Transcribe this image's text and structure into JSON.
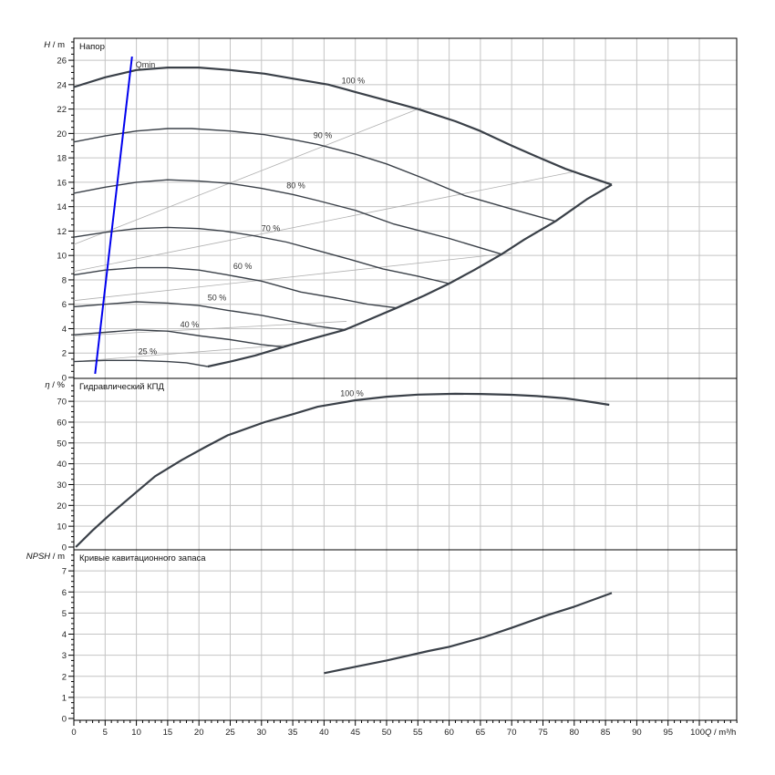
{
  "chart_data": [
    {
      "type": "line",
      "title": "Напор",
      "ylabel_italic": "H",
      "ylabel_unit": " / m",
      "xlim": [
        0,
        106
      ],
      "ylim": [
        0,
        27.8
      ],
      "yticks": [
        0,
        2,
        4,
        6,
        8,
        10,
        12,
        14,
        16,
        18,
        20,
        22,
        24,
        26
      ],
      "grid": true,
      "series": [
        {
          "name": "100 %",
          "label_at": [
            42.8,
            24.1
          ],
          "points": [
            [
              0,
              23.8
            ],
            [
              5,
              24.6
            ],
            [
              10,
              25.2
            ],
            [
              15,
              25.4
            ],
            [
              20,
              25.4
            ],
            [
              25,
              25.2
            ],
            [
              30.5,
              24.9
            ],
            [
              35,
              24.5
            ],
            [
              40.7,
              24.0
            ],
            [
              45,
              23.4
            ],
            [
              50,
              22.7
            ],
            [
              55,
              22.0
            ],
            [
              61,
              21.0
            ],
            [
              65,
              20.2
            ],
            [
              70,
              19.0
            ],
            [
              74,
              18.1
            ],
            [
              78.6,
              17.1
            ],
            [
              82,
              16.5
            ],
            [
              86,
              15.8
            ]
          ]
        },
        {
          "name": "90 %",
          "label_at": [
            38.3,
            19.6
          ],
          "points": [
            [
              0,
              19.3
            ],
            [
              5,
              19.8
            ],
            [
              10,
              20.2
            ],
            [
              15,
              20.4
            ],
            [
              18.8,
              20.4
            ],
            [
              25,
              20.2
            ],
            [
              30.5,
              19.9
            ],
            [
              35,
              19.5
            ],
            [
              39,
              19.1
            ],
            [
              45,
              18.3
            ],
            [
              50,
              17.5
            ],
            [
              56,
              16.3
            ],
            [
              62.5,
              14.9
            ],
            [
              70,
              13.8
            ],
            [
              77,
              12.8
            ]
          ]
        },
        {
          "name": "80 %",
          "label_at": [
            34,
            15.5
          ],
          "points": [
            [
              0,
              15.1
            ],
            [
              5,
              15.6
            ],
            [
              10,
              16.0
            ],
            [
              15,
              16.2
            ],
            [
              20,
              16.1
            ],
            [
              25,
              15.9
            ],
            [
              30,
              15.5
            ],
            [
              35,
              15.0
            ],
            [
              39,
              14.5
            ],
            [
              45,
              13.7
            ],
            [
              51,
              12.6
            ],
            [
              60,
              11.4
            ],
            [
              68.4,
              10.1
            ]
          ]
        },
        {
          "name": "70 %",
          "label_at": [
            30,
            12.0
          ],
          "points": [
            [
              0,
              11.5
            ],
            [
              5,
              11.9
            ],
            [
              10,
              12.2
            ],
            [
              15,
              12.3
            ],
            [
              20,
              12.2
            ],
            [
              24,
              12.0
            ],
            [
              29,
              11.6
            ],
            [
              34,
              11.1
            ],
            [
              39,
              10.4
            ],
            [
              44,
              9.7
            ],
            [
              49.4,
              8.9
            ],
            [
              55,
              8.3
            ],
            [
              60,
              7.7
            ]
          ]
        },
        {
          "name": "60 %",
          "label_at": [
            25.5,
            8.9
          ],
          "points": [
            [
              0,
              8.4
            ],
            [
              5,
              8.8
            ],
            [
              10,
              9.0
            ],
            [
              15,
              9.0
            ],
            [
              20,
              8.8
            ],
            [
              24.6,
              8.4
            ],
            [
              30,
              7.9
            ],
            [
              36.3,
              7.0
            ],
            [
              42,
              6.5
            ],
            [
              47,
              6.0
            ],
            [
              51.6,
              5.7
            ]
          ]
        },
        {
          "name": "50 %",
          "label_at": [
            21.4,
            6.3
          ],
          "points": [
            [
              0,
              5.8
            ],
            [
              5,
              6.0
            ],
            [
              10,
              6.2
            ],
            [
              15,
              6.1
            ],
            [
              20,
              5.9
            ],
            [
              24.6,
              5.5
            ],
            [
              30,
              5.1
            ],
            [
              34.8,
              4.6
            ],
            [
              39,
              4.2
            ],
            [
              43.3,
              3.9
            ]
          ]
        },
        {
          "name": "40 %",
          "label_at": [
            17,
            4.1
          ],
          "points": [
            [
              0,
              3.5
            ],
            [
              5,
              3.7
            ],
            [
              10,
              3.9
            ],
            [
              15,
              3.8
            ],
            [
              20.3,
              3.4
            ],
            [
              25,
              3.1
            ],
            [
              30,
              2.7
            ],
            [
              33.4,
              2.5
            ]
          ]
        },
        {
          "name": "25 %",
          "label_at": [
            10.3,
            1.9
          ],
          "points": [
            [
              0,
              1.3
            ],
            [
              5,
              1.4
            ],
            [
              10,
              1.4
            ],
            [
              15,
              1.3
            ],
            [
              18,
              1.2
            ],
            [
              21.4,
              0.9
            ]
          ]
        },
        {
          "name": "max-envelope",
          "points": [
            [
              21.4,
              0.9
            ],
            [
              25,
              1.3
            ],
            [
              29,
              1.8
            ],
            [
              34.8,
              2.7
            ],
            [
              39,
              3.3
            ],
            [
              43.3,
              3.9
            ],
            [
              47,
              4.7
            ],
            [
              51.6,
              5.7
            ],
            [
              56,
              6.7
            ],
            [
              60,
              7.7
            ],
            [
              64,
              8.8
            ],
            [
              68.4,
              10.1
            ],
            [
              72,
              11.3
            ],
            [
              77,
              12.8
            ],
            [
              82,
              14.6
            ],
            [
              86,
              15.8
            ]
          ]
        }
      ],
      "guide_lines": [
        [
          [
            0,
            10.9
          ],
          [
            55.5,
            22.1
          ]
        ],
        [
          [
            0,
            8.7
          ],
          [
            80.3,
            16.9
          ]
        ],
        [
          [
            0,
            6.3
          ],
          [
            69.9,
            10.2
          ]
        ],
        [
          [
            0,
            3.4
          ],
          [
            43.6,
            4.6
          ]
        ],
        [
          [
            0,
            1.3
          ],
          [
            34.8,
            2.7
          ]
        ]
      ],
      "qmin": {
        "label": "Qmin",
        "points": [
          [
            3.4,
            0.3
          ],
          [
            9.3,
            26.3
          ]
        ],
        "color": "#0000ee"
      }
    },
    {
      "type": "line",
      "title": "Гидравлический КПД",
      "ylabel_italic": "η",
      "ylabel_unit": " / %",
      "xlim": [
        0,
        106
      ],
      "ylim": [
        0,
        81
      ],
      "yticks": [
        0,
        10,
        20,
        30,
        40,
        50,
        60,
        70
      ],
      "grid": true,
      "series": [
        {
          "name": "100 %",
          "label_at": [
            42.6,
            72.5
          ],
          "points": [
            [
              0.3,
              0
            ],
            [
              3,
              8
            ],
            [
              5.7,
              15.4
            ],
            [
              10,
              26.4
            ],
            [
              13,
              34
            ],
            [
              17.3,
              41.9
            ],
            [
              21,
              48
            ],
            [
              24.6,
              53.7
            ],
            [
              30.5,
              60
            ],
            [
              35,
              63.8
            ],
            [
              39,
              67.4
            ],
            [
              45,
              70.5
            ],
            [
              50,
              72.2
            ],
            [
              55,
              73.2
            ],
            [
              61,
              73.6
            ],
            [
              65,
              73.5
            ],
            [
              70,
              73.1
            ],
            [
              74,
              72.5
            ],
            [
              78.6,
              71.4
            ],
            [
              82,
              70
            ],
            [
              85.6,
              68.3
            ]
          ]
        }
      ]
    },
    {
      "type": "line",
      "title": "Кривые кавитационного запаса",
      "ylabel_italic": "NPSH",
      "ylabel_unit": " / m",
      "xlim": [
        0,
        106
      ],
      "ylim": [
        0,
        8
      ],
      "yticks": [
        0,
        1,
        2,
        3,
        4,
        5,
        6,
        7
      ],
      "grid": true,
      "series": [
        {
          "name": "NPSH",
          "points": [
            [
              40,
              2.15
            ],
            [
              45,
              2.45
            ],
            [
              50,
              2.75
            ],
            [
              56.7,
              3.2
            ],
            [
              60,
              3.4
            ],
            [
              65.5,
              3.85
            ],
            [
              70,
              4.3
            ],
            [
              75.7,
              4.9
            ],
            [
              80,
              5.3
            ],
            [
              86,
              5.95
            ]
          ]
        }
      ]
    }
  ],
  "x_axis": {
    "ticks": [
      0,
      5,
      10,
      15,
      20,
      25,
      30,
      35,
      40,
      45,
      50,
      55,
      60,
      65,
      70,
      75,
      80,
      85,
      90,
      95,
      100
    ],
    "label_italic": "Q",
    "label_unit": " / m³/h"
  },
  "colors": {
    "curve": "#3a4048",
    "grid": "#c4c4c4",
    "guide": "#b0b0b0",
    "qmin": "#0000ee"
  }
}
